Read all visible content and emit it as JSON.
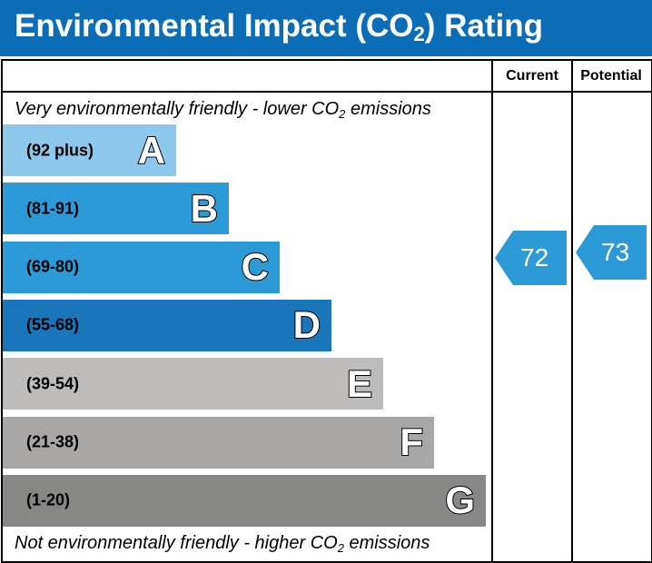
{
  "title": {
    "prefix": "Environmental Impact (CO",
    "subscript": "2",
    "suffix": ") Rating"
  },
  "columns": {
    "current": "Current",
    "potential": "Potential"
  },
  "captions": {
    "top": {
      "before": "Very environmentally friendly - lower CO",
      "sub": "2",
      "after": " emissions"
    },
    "bottom": {
      "before": "Not environmentally friendly - higher CO",
      "sub": "2",
      "after": " emissions"
    }
  },
  "colors": {
    "header_bg": "#0b6db5",
    "A": "#8dc8ec",
    "B": "#2b9ad6",
    "C": "#2b9ad6",
    "D": "#1976bb",
    "E": "#bdbcbb",
    "F": "#a8a7a6",
    "G": "#878786",
    "marker": "#2b9ad6"
  },
  "chart_data": {
    "type": "bar",
    "title": "Environmental Impact (CO2) Rating",
    "categories": [
      "A",
      "B",
      "C",
      "D",
      "E",
      "F",
      "G"
    ],
    "bands": [
      {
        "letter": "A",
        "range": "(92 plus)",
        "min": 92,
        "max": 100
      },
      {
        "letter": "B",
        "range": "(81-91)",
        "min": 81,
        "max": 91
      },
      {
        "letter": "C",
        "range": "(69-80)",
        "min": 69,
        "max": 80
      },
      {
        "letter": "D",
        "range": "(55-68)",
        "min": 55,
        "max": 68
      },
      {
        "letter": "E",
        "range": "(39-54)",
        "min": 39,
        "max": 54
      },
      {
        "letter": "F",
        "range": "(21-38)",
        "min": 21,
        "max": 38
      },
      {
        "letter": "G",
        "range": "(1-20)",
        "min": 1,
        "max": 20
      }
    ],
    "series": [
      {
        "name": "Current",
        "value": 72,
        "band": "C"
      },
      {
        "name": "Potential",
        "value": 73,
        "band": "C"
      }
    ]
  }
}
